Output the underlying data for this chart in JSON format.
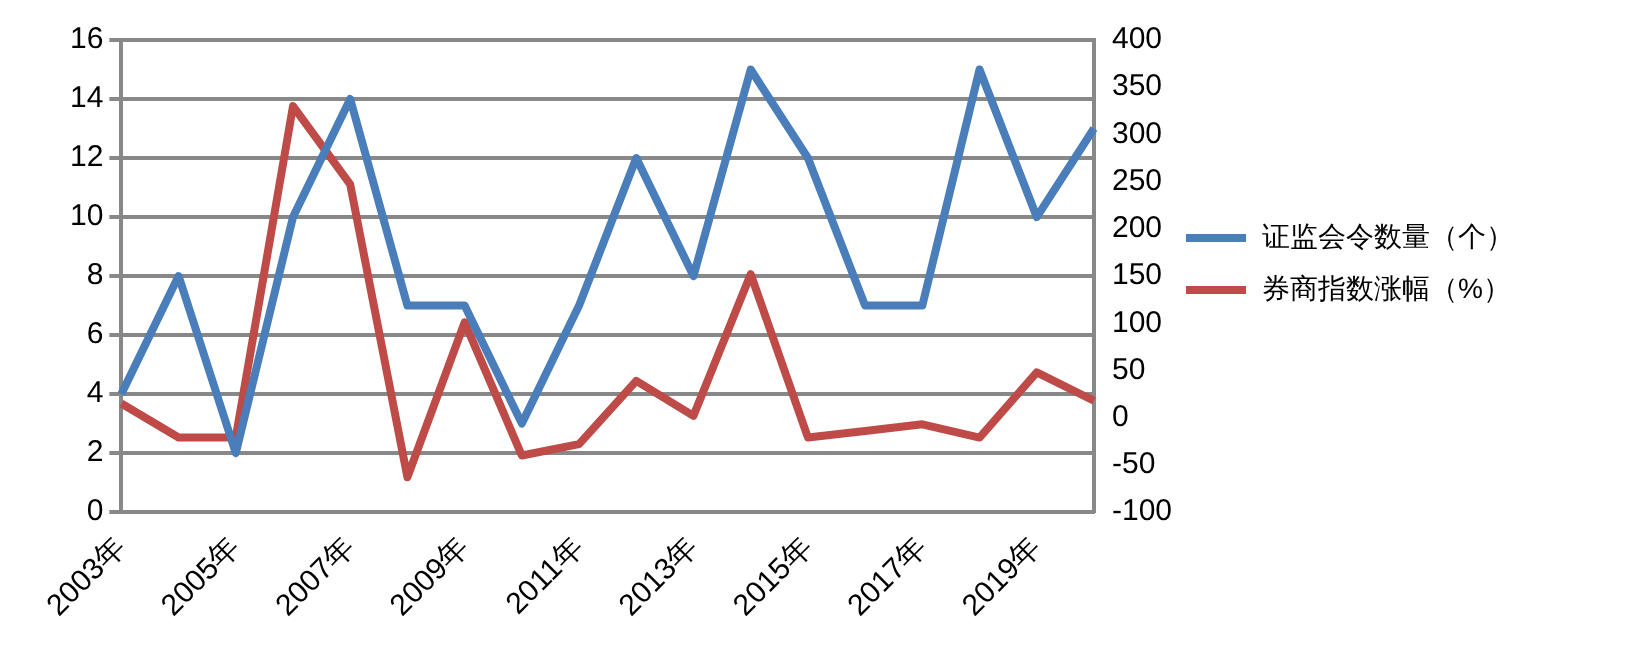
{
  "chart_data": {
    "type": "line",
    "categories": [
      "2003年",
      null,
      "2005年",
      null,
      "2007年",
      null,
      "2009年",
      null,
      "2011年",
      null,
      "2013年",
      null,
      "2015年",
      null,
      "2017年",
      null,
      "2019年",
      null
    ],
    "series": [
      {
        "name": "证监会令数量（个）",
        "color": "#4a7ebb",
        "values": [
          4,
          8,
          2,
          10,
          14,
          7,
          7,
          3,
          7,
          12,
          8,
          15,
          12,
          7,
          7,
          15,
          10,
          13
        ]
      },
      {
        "name": "券商指数涨幅（%）",
        "color": "#be4b48",
        "axis": "y2",
        "values": [
          15,
          -21,
          -21,
          330,
          247,
          -63,
          101,
          -40,
          -28,
          39,
          2,
          152,
          -21,
          -14,
          -7,
          -21,
          48,
          18
        ]
      }
    ],
    "ylim": [
      0,
      16
    ],
    "yticks": [
      0,
      2,
      4,
      6,
      8,
      10,
      12,
      14,
      16
    ],
    "y2lim": [
      -100,
      400
    ],
    "y2ticks": [
      -100,
      -50,
      0,
      50,
      100,
      150,
      200,
      250,
      300,
      350,
      400
    ],
    "grid": "y",
    "legend": "right",
    "marker": "none",
    "line_style": "solid"
  }
}
